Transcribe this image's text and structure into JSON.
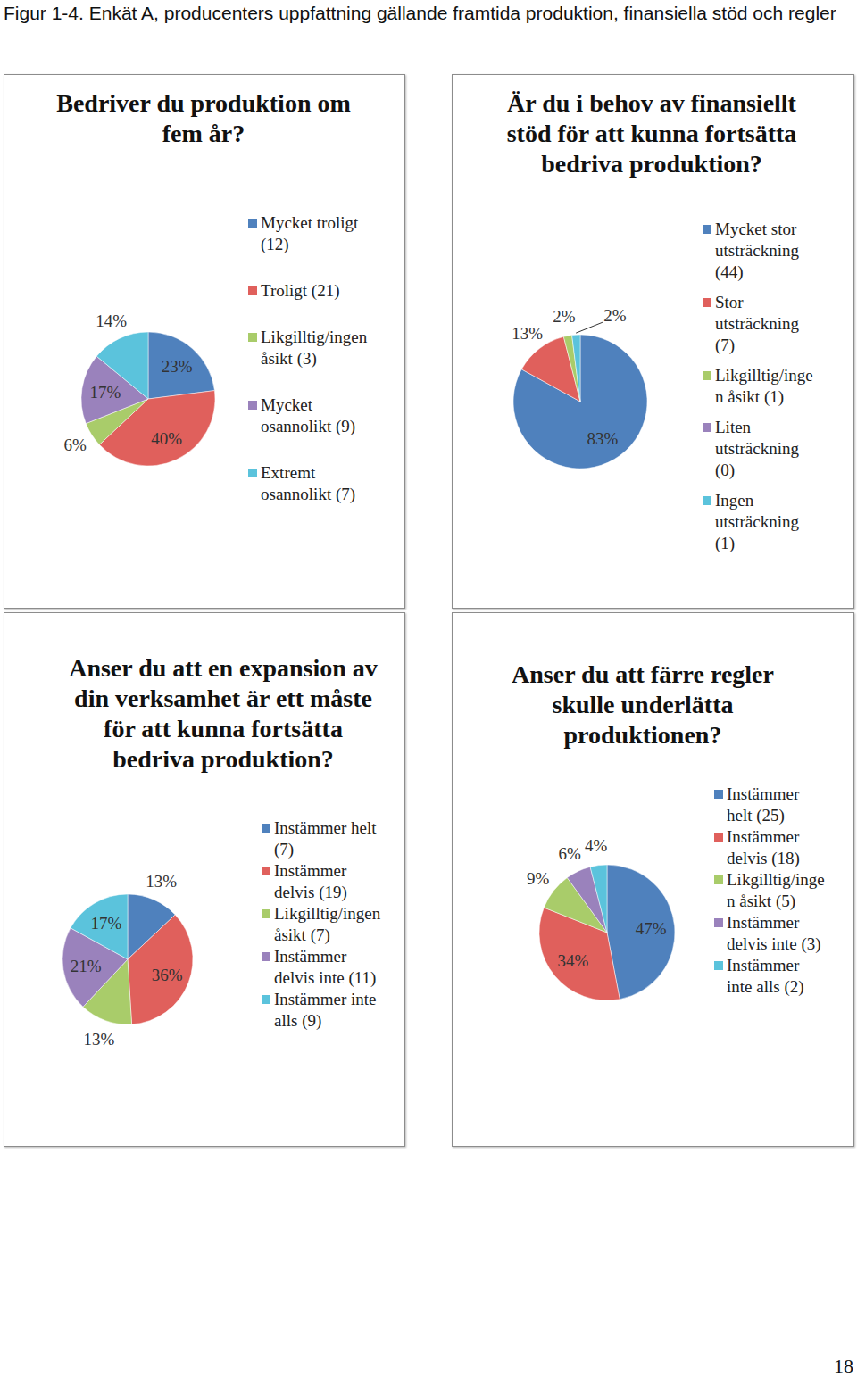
{
  "caption": "Figur 1-4. Enkät A, producenters uppfattning gällande framtida produktion, finansiella stöd och regler",
  "page_number": "18",
  "chart_data": [
    {
      "type": "pie",
      "title": "Bedriver du produktion om fem år?",
      "categories": [
        "Mycket troligt (12)",
        "Troligt (21)",
        "Likgilltig/ingen åsikt (3)",
        "Mycket osannolikt (9)",
        "Extremt osannolikt (7)"
      ],
      "values": [
        23,
        40,
        6,
        17,
        14
      ],
      "value_labels": [
        "23%",
        "40%",
        "6%",
        "17%",
        "14%"
      ],
      "colors": [
        "#4f81bd",
        "#e0605c",
        "#a9cc6a",
        "#9a82bc",
        "#5bc3dc"
      ],
      "data_labels": true
    },
    {
      "type": "pie",
      "title": "Är du i behov av finansiellt stöd för att kunna fortsätta bedriva produktion?",
      "categories": [
        "Mycket stor utsträckning (44)",
        "Stor utsträckning (7)",
        "Likgilltig/ingen åsikt (1)",
        "Liten utsträckning (0)",
        "Ingen utsträckning (1)"
      ],
      "values": [
        83,
        13,
        2,
        0,
        2
      ],
      "value_labels": [
        "83%",
        "13%",
        "2%",
        null,
        "2%"
      ],
      "colors": [
        "#4f81bd",
        "#e0605c",
        "#a9cc6a",
        "#9a82bc",
        "#5bc3dc"
      ],
      "data_labels": true
    },
    {
      "type": "pie",
      "title": "Anser du att en expansion av din verksamhet är ett måste för att kunna fortsätta bedriva produktion?",
      "categories": [
        "Instämmer helt (7)",
        "Instämmer delvis (19)",
        "Likgilltig/ingen åsikt (7)",
        "Instämmer delvis inte (11)",
        "Instämmer inte alls (9)"
      ],
      "values": [
        13,
        36,
        13,
        21,
        17
      ],
      "value_labels": [
        "13%",
        "36%",
        "13%",
        "21%",
        "17%"
      ],
      "colors": [
        "#4f81bd",
        "#e0605c",
        "#a9cc6a",
        "#9a82bc",
        "#5bc3dc"
      ],
      "data_labels": true
    },
    {
      "type": "pie",
      "title": "Anser du att färre regler skulle underlätta produktionen?",
      "categories": [
        "Instämmer helt (25)",
        "Instämmer delvis (18)",
        "Likgilltig/ingen åsikt (5)",
        "Instämmer delvis inte (3)",
        "Instämmer inte alls (2)"
      ],
      "values": [
        47,
        34,
        9,
        6,
        4
      ],
      "value_labels": [
        "47%",
        "34%",
        "9%",
        "6%",
        "4%"
      ],
      "colors": [
        "#4f81bd",
        "#e0605c",
        "#a9cc6a",
        "#9a82bc",
        "#5bc3dc"
      ],
      "data_labels": true
    }
  ]
}
